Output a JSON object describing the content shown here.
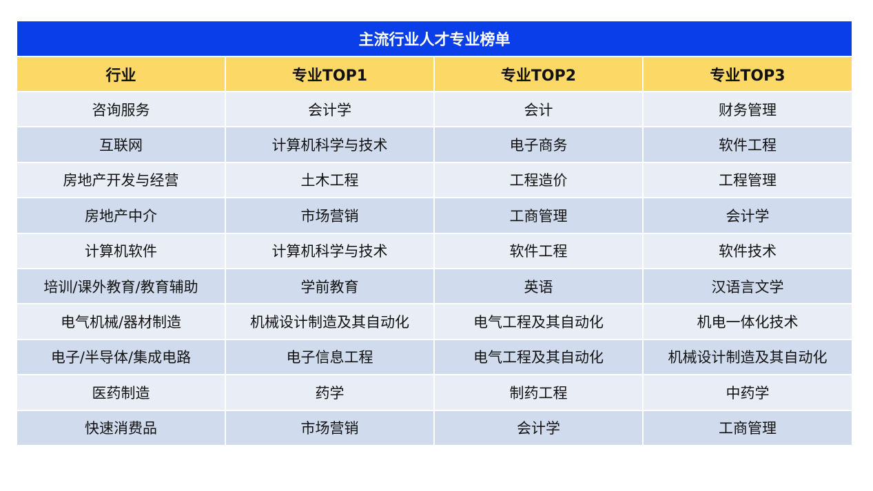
{
  "table": {
    "title": "主流行业人才专业榜单",
    "headers": [
      "行业",
      "专业TOP1",
      "专业TOP2",
      "专业TOP3"
    ],
    "rows": [
      [
        "咨询服务",
        "会计学",
        "会计",
        "财务管理"
      ],
      [
        "互联网",
        "计算机科学与技术",
        "电子商务",
        "软件工程"
      ],
      [
        "房地产开发与经营",
        "土木工程",
        "工程造价",
        "工程管理"
      ],
      [
        "房地产中介",
        "市场营销",
        "工商管理",
        "会计学"
      ],
      [
        "计算机软件",
        "计算机科学与技术",
        "软件工程",
        "软件技术"
      ],
      [
        "培训/课外教育/教育辅助",
        "学前教育",
        "英语",
        "汉语言文学"
      ],
      [
        "电气机械/器材制造",
        "机械设计制造及其自动化",
        "电气工程及其自动化",
        "机电一体化技术"
      ],
      [
        "电子/半导体/集成电路",
        "电子信息工程",
        "电气工程及其自动化",
        "机械设计制造及其自动化"
      ],
      [
        "医药制造",
        "药学",
        "制药工程",
        "中药学"
      ],
      [
        "快速消费品",
        "市场营销",
        "会计学",
        "工商管理"
      ]
    ]
  },
  "colors": {
    "title_bg": "#0a3ee8",
    "header_bg": "#fcd966",
    "row_light": "#e9edf5",
    "row_dark": "#d0dbed"
  }
}
